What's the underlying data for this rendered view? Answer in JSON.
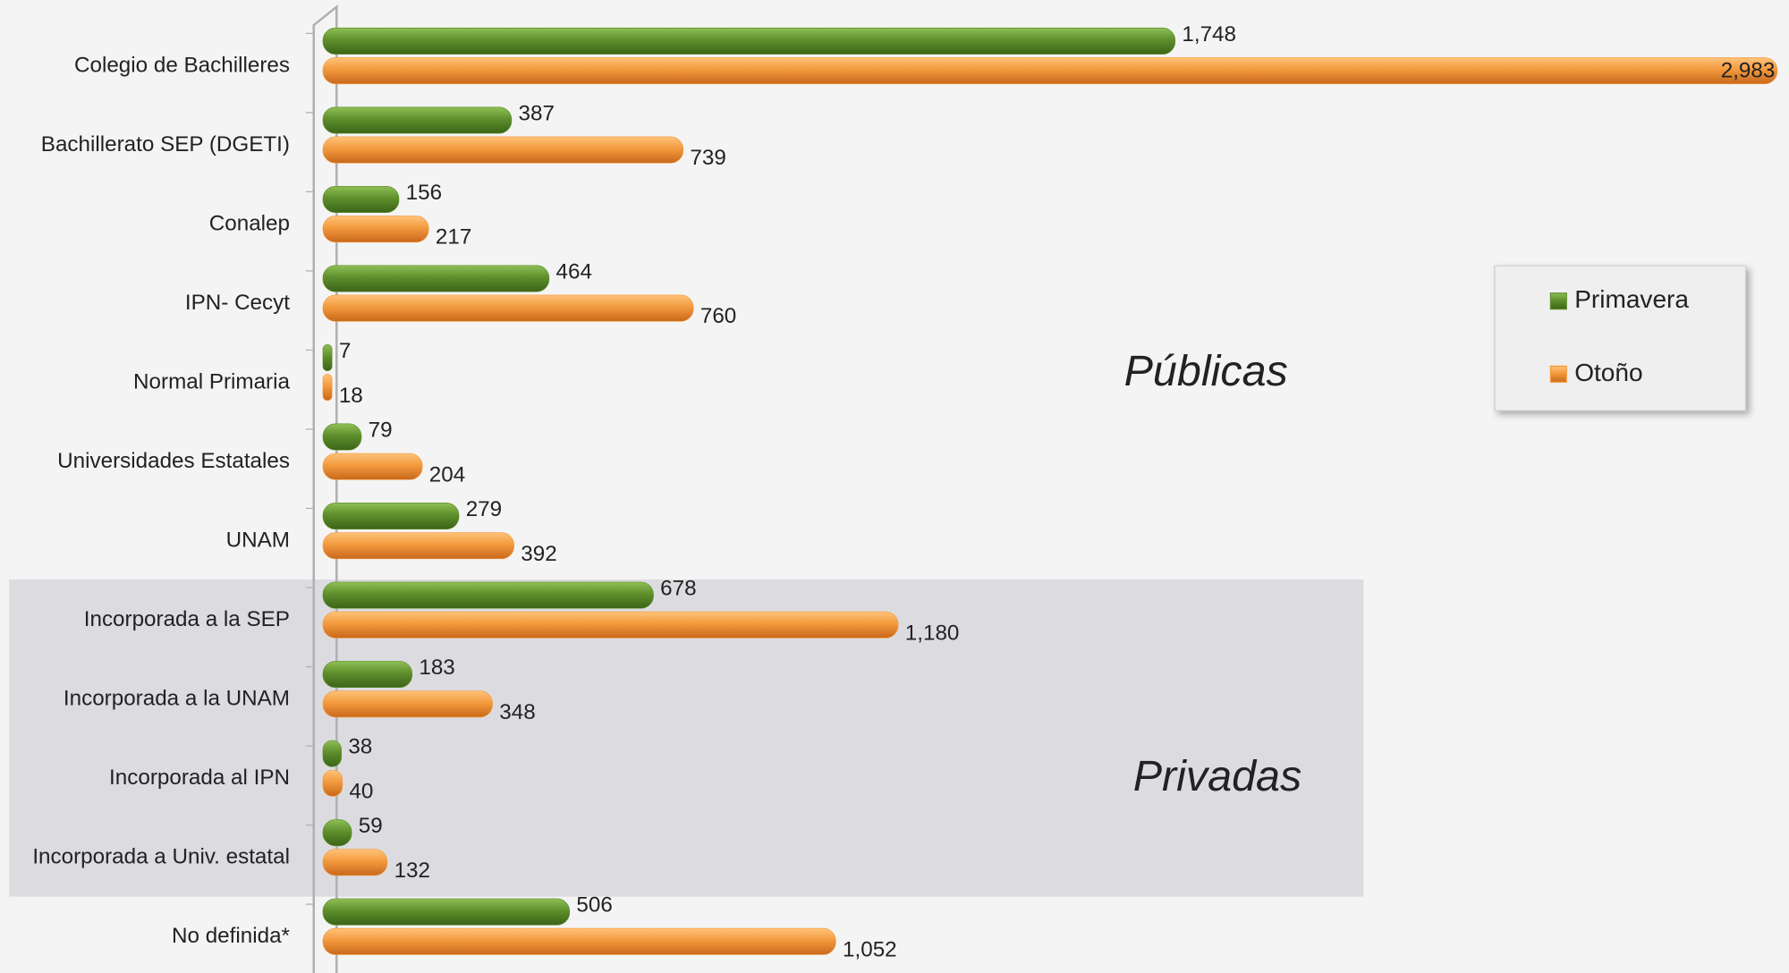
{
  "chart_data": {
    "type": "bar",
    "orientation": "horizontal",
    "categories": [
      "Colegio de Bachilleres",
      "Bachillerato SEP (DGETI)",
      "Conalep",
      "IPN- Cecyt",
      "Normal Primaria",
      "Universidades Estatales",
      "UNAM",
      "Incorporada a la SEP",
      "Incorporada a la UNAM",
      "Incorporada al IPN",
      "Incorporada a Univ. estatal",
      "No definida*"
    ],
    "series": [
      {
        "name": "Primavera",
        "color": "#5e8f2c",
        "values": [
          1748,
          387,
          156,
          464,
          7,
          79,
          279,
          678,
          183,
          38,
          59,
          506
        ],
        "value_labels": [
          "1,748",
          "387",
          "156",
          "464",
          "7",
          "79",
          "279",
          "678",
          "183",
          "38",
          "59",
          "506"
        ]
      },
      {
        "name": "Otoño",
        "color": "#f39a3e",
        "values": [
          2983,
          739,
          217,
          760,
          18,
          204,
          392,
          1180,
          348,
          40,
          132,
          1052
        ],
        "value_labels": [
          "2,983",
          "739",
          "217",
          "760",
          "18",
          "204",
          "392",
          "1,180",
          "348",
          "40",
          "132",
          "1,052"
        ]
      }
    ],
    "xlim": [
      0,
      3000
    ],
    "annotations": [
      "Públicas",
      "Privadas"
    ],
    "legend": "right"
  }
}
